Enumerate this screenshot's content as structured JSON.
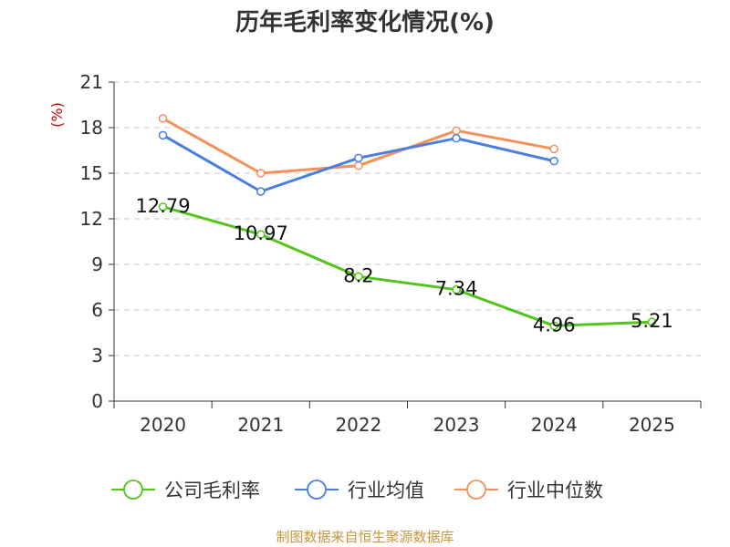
{
  "chart_data": {
    "type": "line",
    "title": "历年毛利率变化情况(%)",
    "ylabel": "(%)",
    "xlabel": "",
    "categories": [
      "2020",
      "2021",
      "2022",
      "2023",
      "2024",
      "2025"
    ],
    "ylim": [
      0,
      21
    ],
    "yticks": [
      "0",
      "3",
      "6",
      "9",
      "12",
      "15",
      "18",
      "21"
    ],
    "grid": "horizontal-dashed",
    "legend_position": "bottom",
    "series": [
      {
        "name": "公司毛利率",
        "color": "#52c41a",
        "values": [
          12.79,
          10.97,
          8.2,
          7.34,
          4.96,
          5.21
        ],
        "labels": [
          "12.79",
          "10.97",
          "8.2",
          "7.34",
          "4.96",
          "5.21"
        ]
      },
      {
        "name": "行业均值",
        "color": "#4a7ee0",
        "values": [
          17.5,
          13.8,
          16.0,
          17.3,
          15.8,
          null
        ]
      },
      {
        "name": "行业中位数",
        "color": "#f5905a",
        "values": [
          18.6,
          15.0,
          15.5,
          17.8,
          16.6,
          null
        ]
      }
    ],
    "ylabel_color": "#cc0000"
  },
  "footer": {
    "source": "制图数据来自恒生聚源数据库"
  }
}
